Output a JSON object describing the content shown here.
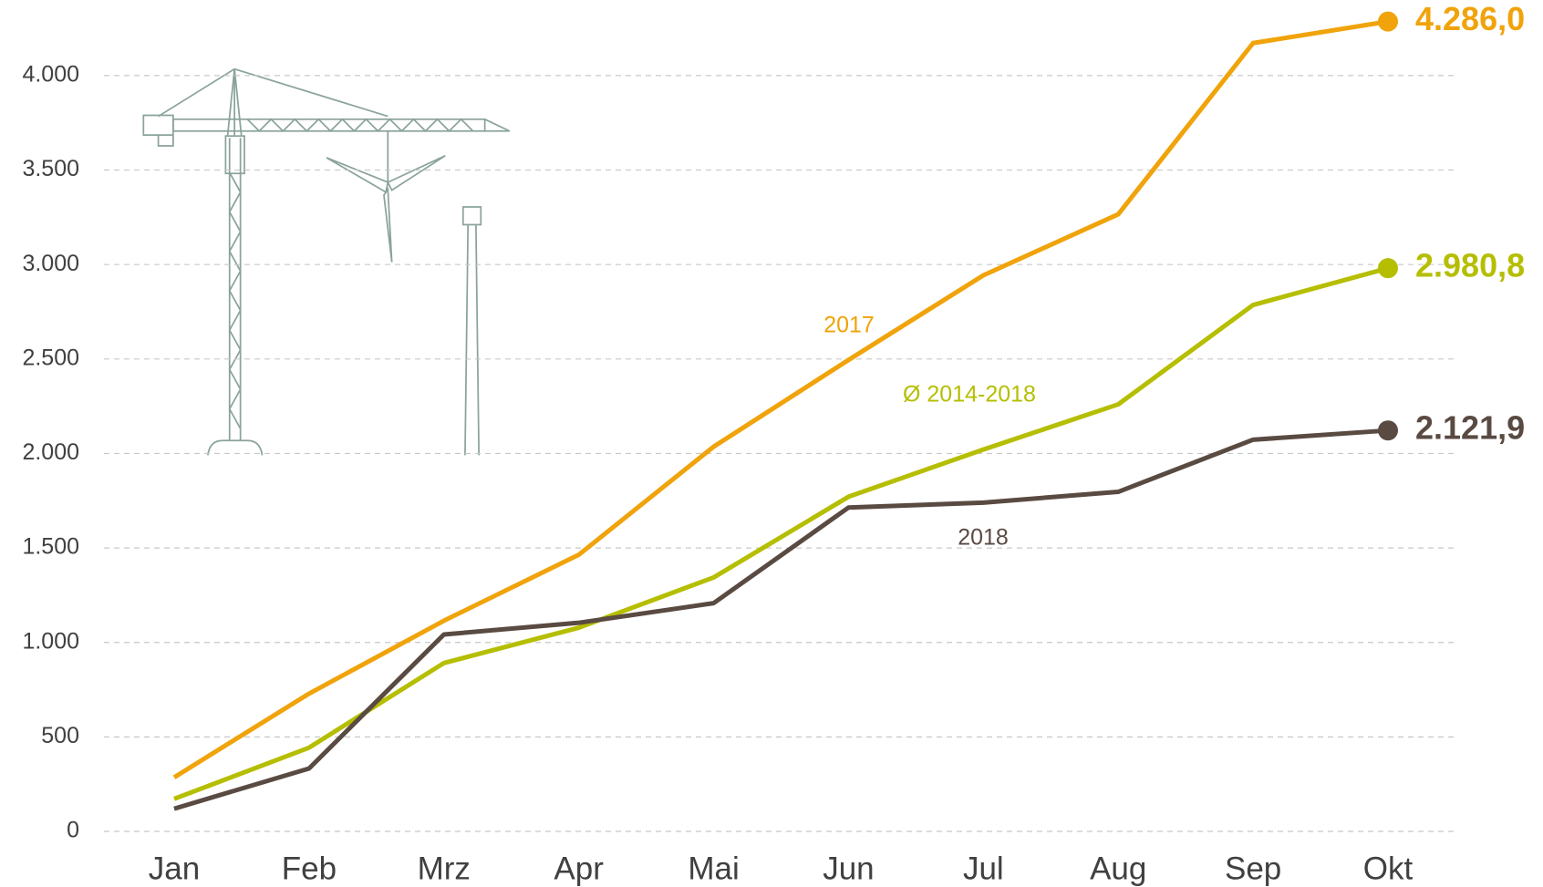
{
  "chart_data": {
    "type": "line",
    "categories": [
      "Jan",
      "Feb",
      "Mrz",
      "Apr",
      "Mai",
      "Jun",
      "Jul",
      "Aug",
      "Sep",
      "Okt"
    ],
    "series": [
      {
        "name": "2017",
        "color": "#f0a30a",
        "values": [
          286,
          729,
          1115,
          1464,
          2036,
          2495,
          2943,
          3266,
          4172,
          4286
        ],
        "end_label": "4.286,0"
      },
      {
        "name": "Ø 2014-2018",
        "color": "#b5be00",
        "values": [
          172,
          443,
          891,
          1078,
          1344,
          1771,
          2021,
          2260,
          2786,
          2980.8
        ],
        "end_label": "2.980,8"
      },
      {
        "name": "2018",
        "color": "#594a42",
        "values": [
          120,
          333,
          1042,
          1104,
          1208,
          1714,
          1740,
          1797,
          2073,
          2121.9
        ],
        "end_label": "2.121,9"
      }
    ],
    "ylim": [
      0,
      4400
    ],
    "yticks": [
      0,
      500,
      {
        "value": 1000,
        "label": "1.000"
      },
      {
        "value": 1500,
        "label": "1.500"
      },
      {
        "value": 2000,
        "label": "2.000"
      },
      {
        "value": 2500,
        "label": "2.500"
      },
      {
        "value": 3000,
        "label": "3.000"
      },
      {
        "value": 3500,
        "label": "3.500"
      },
      {
        "value": 4000,
        "label": "4.000"
      }
    ],
    "grid": true
  }
}
